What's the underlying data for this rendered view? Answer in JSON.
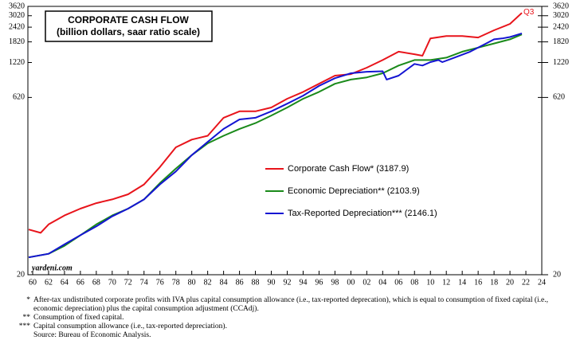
{
  "chart_data": {
    "type": "line",
    "title": "CORPORATE CASH FLOW",
    "subtitle": "(billion dollars, saar ratio scale)",
    "annotation": "Q3",
    "watermark": "yardeni.com",
    "log_scale": true,
    "legend_position": "center",
    "ylim": [
      20,
      3620
    ],
    "yticks": [
      20,
      620,
      1220,
      1820,
      2420,
      3020,
      3620
    ],
    "xlim": [
      1959.4,
      2024
    ],
    "xticks": [
      {
        "value": 1960,
        "label": "60"
      },
      {
        "value": 1962,
        "label": "62"
      },
      {
        "value": 1964,
        "label": "64"
      },
      {
        "value": 1966,
        "label": "66"
      },
      {
        "value": 1968,
        "label": "68"
      },
      {
        "value": 1970,
        "label": "70"
      },
      {
        "value": 1972,
        "label": "72"
      },
      {
        "value": 1974,
        "label": "74"
      },
      {
        "value": 1976,
        "label": "76"
      },
      {
        "value": 1978,
        "label": "78"
      },
      {
        "value": 1980,
        "label": "80"
      },
      {
        "value": 1982,
        "label": "82"
      },
      {
        "value": 1984,
        "label": "84"
      },
      {
        "value": 1986,
        "label": "86"
      },
      {
        "value": 1988,
        "label": "88"
      },
      {
        "value": 1990,
        "label": "90"
      },
      {
        "value": 1992,
        "label": "92"
      },
      {
        "value": 1994,
        "label": "94"
      },
      {
        "value": 1996,
        "label": "96"
      },
      {
        "value": 1998,
        "label": "98"
      },
      {
        "value": 2000,
        "label": "00"
      },
      {
        "value": 2002,
        "label": "02"
      },
      {
        "value": 2004,
        "label": "04"
      },
      {
        "value": 2006,
        "label": "06"
      },
      {
        "value": 2008,
        "label": "08"
      },
      {
        "value": 2010,
        "label": "10"
      },
      {
        "value": 2012,
        "label": "12"
      },
      {
        "value": 2014,
        "label": "14"
      },
      {
        "value": 2016,
        "label": "16"
      },
      {
        "value": 2018,
        "label": "18"
      },
      {
        "value": 2020,
        "label": "20"
      },
      {
        "value": 2022,
        "label": "22"
      },
      {
        "value": 2024,
        "label": "24"
      }
    ],
    "series": [
      {
        "name": "Corporate Cash Flow* (3187.9)",
        "color": "#e8141b",
        "x": [
          1959.5,
          1961,
          1962,
          1964,
          1966,
          1968,
          1970,
          1972,
          1974,
          1976,
          1978,
          1980,
          1982,
          1984,
          1986,
          1988,
          1990,
          1992,
          1994,
          1996,
          1998,
          2000,
          2002,
          2004,
          2006,
          2008,
          2009,
          2010,
          2012,
          2014,
          2016,
          2018,
          2020,
          2021.5
        ],
        "values": [
          48,
          45,
          53,
          63,
          72,
          80,
          86,
          95,
          115,
          161,
          236,
          274,
          295,
          418,
          474,
          474,
          510,
          605,
          691,
          808,
          946,
          974,
          1104,
          1279,
          1504,
          1432,
          1390,
          1944,
          2040,
          2040,
          1980,
          2280,
          2580,
          3187.9
        ]
      },
      {
        "name": "Economic Depreciation** (2103.9)",
        "color": "#1a8a1a",
        "x": [
          1959.5,
          1962,
          1964,
          1966,
          1968,
          1970,
          1972,
          1974,
          1976,
          1978,
          1980,
          1982,
          1984,
          1986,
          1988,
          1990,
          1992,
          1994,
          1996,
          1998,
          2000,
          2002,
          2004,
          2006,
          2008,
          2010,
          2012,
          2014,
          2016,
          2018,
          2020,
          2021.5
        ],
        "values": [
          28,
          30,
          35,
          43,
          53,
          63,
          72,
          86,
          118,
          156,
          203,
          255,
          295,
          337,
          377,
          437,
          510,
          605,
          691,
          808,
          877,
          915,
          990,
          1150,
          1279,
          1279,
          1340,
          1504,
          1629,
          1765,
          1910,
          2103.9
        ]
      },
      {
        "name": "Tax-Reported Depreciation*** (2146.1)",
        "color": "#1414d2",
        "x": [
          1959.5,
          1962,
          1964,
          1966,
          1968,
          1970,
          1972,
          1974,
          1976,
          1978,
          1980,
          1982,
          1984,
          1986,
          1988,
          1990,
          1992,
          1994,
          1996,
          1998,
          2000,
          2002,
          2004,
          2004.5,
          2006,
          2008,
          2009,
          2010,
          2011,
          2011.5,
          2013,
          2015,
          2017,
          2018,
          2019,
          2020,
          2021.5
        ],
        "values": [
          28,
          30,
          36,
          43,
          51,
          62,
          72,
          86,
          115,
          148,
          203,
          262,
          337,
          405,
          418,
          474,
          550,
          642,
          775,
          900,
          990,
          1020,
          1030,
          877,
          946,
          1186,
          1150,
          1230,
          1279,
          1230,
          1340,
          1504,
          1765,
          1910,
          1944,
          2000,
          2146.1
        ]
      }
    ]
  },
  "footnotes": [
    {
      "marker": "*",
      "text": "After-tax undistributed corporate profits with IVA plus capital consumption allowance (i.e., tax-reported deprecation), which is equal to consumption of fixed capital (i.e., economic depreciation) plus the capital consumption adjustment (CCAdj)."
    },
    {
      "marker": "**",
      "text": "Consumption of fixed capital."
    },
    {
      "marker": "***",
      "text": "Capital consumption allowance (i.e., tax-reported depreciation)."
    },
    {
      "marker": "",
      "text": "Source: Bureau of Economic Analysis."
    }
  ]
}
